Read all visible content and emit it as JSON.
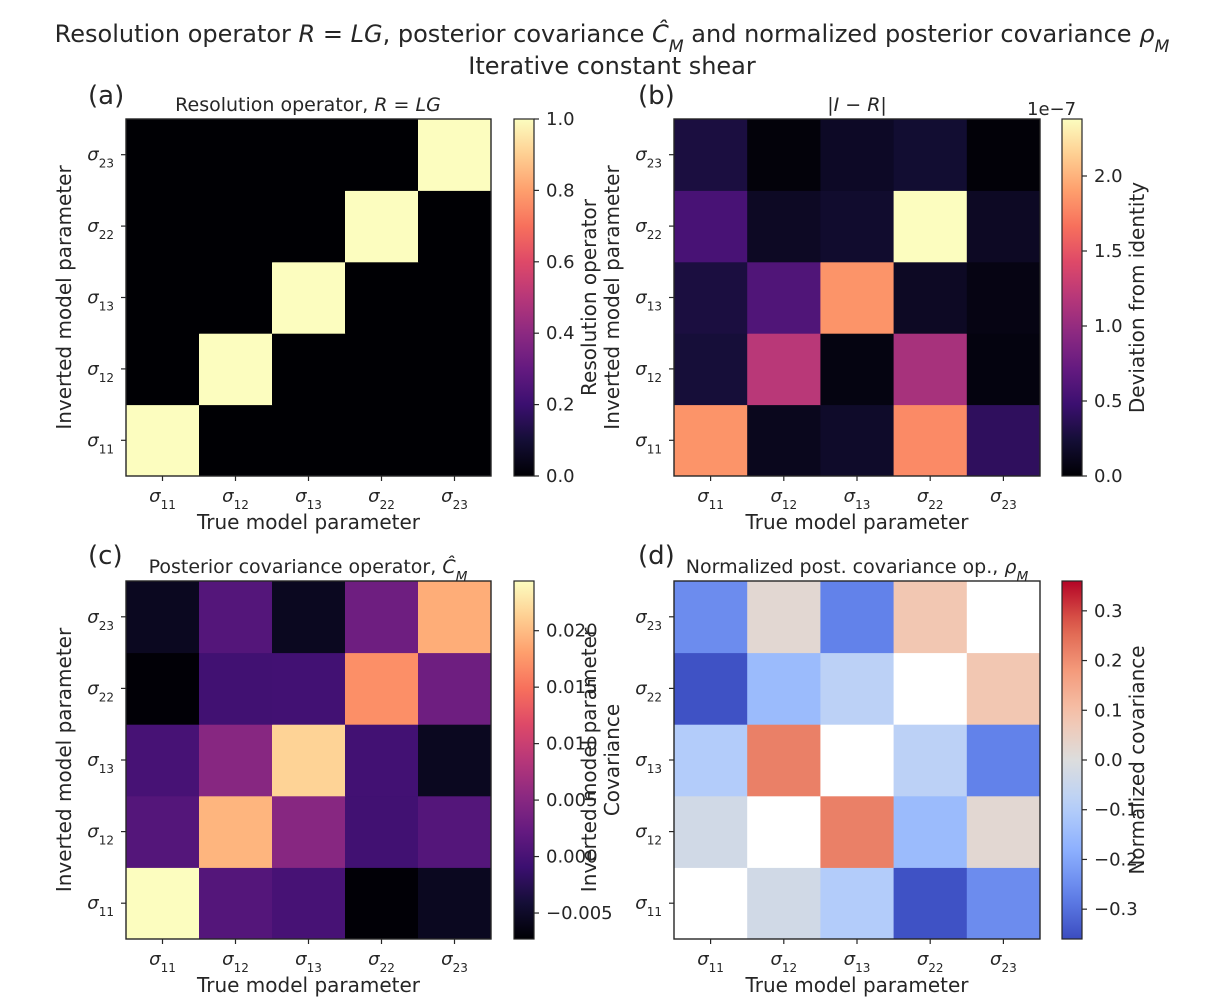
{
  "figure": {
    "title_line1_parts": [
      {
        "t": "Resolution operator "
      },
      {
        "t": "R",
        "i": true
      },
      {
        "t": " = "
      },
      {
        "t": "LG",
        "i": true
      },
      {
        "t": ", posterior covariance "
      },
      {
        "t": "Ĉ",
        "i": true
      },
      {
        "t": "M",
        "i": true,
        "sub": true
      },
      {
        "t": " and normalized posterior covariance "
      },
      {
        "t": "ρ",
        "i": true
      },
      {
        "t": "M",
        "i": true,
        "sub": true
      }
    ],
    "title_line2": "Iterative constant shear"
  },
  "chart_data": [
    {
      "type": "heatmap",
      "panel_label": "(a)",
      "title_parts": [
        {
          "t": "Resolution operator, "
        },
        {
          "t": "R",
          "i": true
        },
        {
          "t": " = "
        },
        {
          "t": "LG",
          "i": true
        }
      ],
      "xlabel": "True model parameter",
      "ylabel": "Inverted model parameter",
      "x_ticks": [
        {
          "b": "σ",
          "s": "11"
        },
        {
          "b": "σ",
          "s": "12"
        },
        {
          "b": "σ",
          "s": "13"
        },
        {
          "b": "σ",
          "s": "22"
        },
        {
          "b": "σ",
          "s": "23"
        }
      ],
      "y_ticks": [
        {
          "b": "σ",
          "s": "11"
        },
        {
          "b": "σ",
          "s": "12"
        },
        {
          "b": "σ",
          "s": "13"
        },
        {
          "b": "σ",
          "s": "22"
        },
        {
          "b": "σ",
          "s": "23"
        }
      ],
      "colormap": "magma",
      "vmin": 0,
      "vmax": 1,
      "values": [
        [
          1,
          0,
          0,
          0,
          0
        ],
        [
          0,
          1,
          0,
          0,
          0
        ],
        [
          0,
          0,
          1,
          0,
          0
        ],
        [
          0,
          0,
          0,
          1,
          0
        ],
        [
          0,
          0,
          0,
          0,
          1
        ]
      ],
      "colorbar": {
        "ticks": [
          0.0,
          0.2,
          0.4,
          0.6,
          0.8,
          1.0
        ],
        "tick_labels": [
          "0.0",
          "0.2",
          "0.4",
          "0.6",
          "0.8",
          "1.0"
        ],
        "label": "Resolution operator",
        "offset": ""
      }
    },
    {
      "type": "heatmap",
      "panel_label": "(b)",
      "title_parts": [
        {
          "t": "|"
        },
        {
          "t": "I",
          "i": true
        },
        {
          "t": " − "
        },
        {
          "t": "R",
          "i": true
        },
        {
          "t": "|"
        }
      ],
      "xlabel": "True model parameter",
      "ylabel": "Inverted model parameter",
      "x_ticks": [
        {
          "b": "σ",
          "s": "11"
        },
        {
          "b": "σ",
          "s": "12"
        },
        {
          "b": "σ",
          "s": "13"
        },
        {
          "b": "σ",
          "s": "22"
        },
        {
          "b": "σ",
          "s": "23"
        }
      ],
      "y_ticks": [
        {
          "b": "σ",
          "s": "11"
        },
        {
          "b": "σ",
          "s": "12"
        },
        {
          "b": "σ",
          "s": "13"
        },
        {
          "b": "σ",
          "s": "22"
        },
        {
          "b": "σ",
          "s": "23"
        }
      ],
      "colormap": "magma",
      "vmin": 0,
      "vmax": 2.38e-07,
      "values": [
        [
          1.85e-07,
          1.2e-08,
          1.8e-08,
          1.8e-07,
          4e-08
        ],
        [
          2.5e-08,
          1.2e-07,
          6e-09,
          1.1e-07,
          5e-09
        ],
        [
          2.8e-08,
          6e-08,
          1.85e-07,
          1.5e-08,
          7e-09
        ],
        [
          5.5e-08,
          1.5e-08,
          2e-08,
          2.38e-07,
          1.5e-08
        ],
        [
          2.8e-08,
          3e-09,
          1.6e-08,
          2.2e-08,
          2e-09
        ]
      ],
      "colorbar": {
        "ticks": [
          0.0,
          5e-08,
          1e-07,
          1.5e-07,
          2e-07
        ],
        "tick_labels": [
          "0.0",
          "0.5",
          "1.0",
          "1.5",
          "2.0"
        ],
        "label": "Deviation from identity",
        "offset": "1e−7"
      }
    },
    {
      "type": "heatmap",
      "panel_label": "(c)",
      "title_parts": [
        {
          "t": "Posterior covariance operator, "
        },
        {
          "t": "Ĉ",
          "i": true
        },
        {
          "t": "M",
          "i": true,
          "sub": true
        }
      ],
      "xlabel": "True model parameter",
      "ylabel": "Inverted model parameter",
      "x_ticks": [
        {
          "b": "σ",
          "s": "11"
        },
        {
          "b": "σ",
          "s": "12"
        },
        {
          "b": "σ",
          "s": "13"
        },
        {
          "b": "σ",
          "s": "22"
        },
        {
          "b": "σ",
          "s": "23"
        }
      ],
      "y_ticks": [
        {
          "b": "σ",
          "s": "11"
        },
        {
          "b": "σ",
          "s": "12"
        },
        {
          "b": "σ",
          "s": "13"
        },
        {
          "b": "σ",
          "s": "22"
        },
        {
          "b": "σ",
          "s": "23"
        }
      ],
      "colormap": "magma",
      "vmin": -0.0073,
      "vmax": 0.0244,
      "values": [
        [
          0.0244,
          0.001,
          0.0,
          -0.0072,
          -0.0055
        ],
        [
          0.001,
          0.0195,
          0.005,
          -0.0005,
          0.001
        ],
        [
          0.0,
          0.005,
          0.0215,
          -0.0004,
          -0.0055
        ],
        [
          -0.0072,
          -0.0005,
          -0.0004,
          0.017,
          0.003
        ],
        [
          -0.0055,
          0.001,
          -0.0055,
          0.003,
          0.019
        ]
      ],
      "colorbar": {
        "ticks": [
          -0.005,
          0.0,
          0.005,
          0.01,
          0.015,
          0.02
        ],
        "tick_labels": [
          "−0.005",
          "0.000",
          "0.005",
          "0.010",
          "0.015",
          "0.020"
        ],
        "label": "Inverted model parameter",
        "offset": ""
      }
    },
    {
      "type": "heatmap",
      "panel_label": "(d)",
      "title_parts": [
        {
          "t": "Normalized post. covariance op., "
        },
        {
          "t": "ρ",
          "i": true
        },
        {
          "t": "M",
          "i": true,
          "sub": true
        }
      ],
      "xlabel": "True model parameter",
      "ylabel": "Covariance",
      "x_ticks": [
        {
          "b": "σ",
          "s": "11"
        },
        {
          "b": "σ",
          "s": "12"
        },
        {
          "b": "σ",
          "s": "13"
        },
        {
          "b": "σ",
          "s": "22"
        },
        {
          "b": "σ",
          "s": "23"
        }
      ],
      "y_ticks": [
        {
          "b": "σ",
          "s": "11"
        },
        {
          "b": "σ",
          "s": "12"
        },
        {
          "b": "σ",
          "s": "13"
        },
        {
          "b": "σ",
          "s": "22"
        },
        {
          "b": "σ",
          "s": "23"
        }
      ],
      "colormap": "coolwarm",
      "vmin": -0.36,
      "vmax": 0.36,
      "values": [
        [
          0.0,
          -0.03,
          -0.1,
          -0.35,
          -0.25
        ],
        [
          -0.03,
          0.0,
          0.22,
          -0.15,
          0.02
        ],
        [
          -0.1,
          0.22,
          0.0,
          -0.08,
          -0.27
        ],
        [
          -0.35,
          -0.15,
          -0.08,
          0.0,
          0.08
        ],
        [
          -0.25,
          0.02,
          -0.27,
          0.08,
          0.0
        ]
      ],
      "diagonal_color": "#ffffff",
      "colorbar": {
        "ticks": [
          -0.3,
          -0.2,
          -0.1,
          0.0,
          0.1,
          0.2,
          0.3
        ],
        "tick_labels": [
          "−0.3",
          "−0.2",
          "−0.1",
          "0.0",
          "0.1",
          "0.2",
          "0.3"
        ],
        "label": "Normalized covariance",
        "offset": ""
      }
    }
  ]
}
